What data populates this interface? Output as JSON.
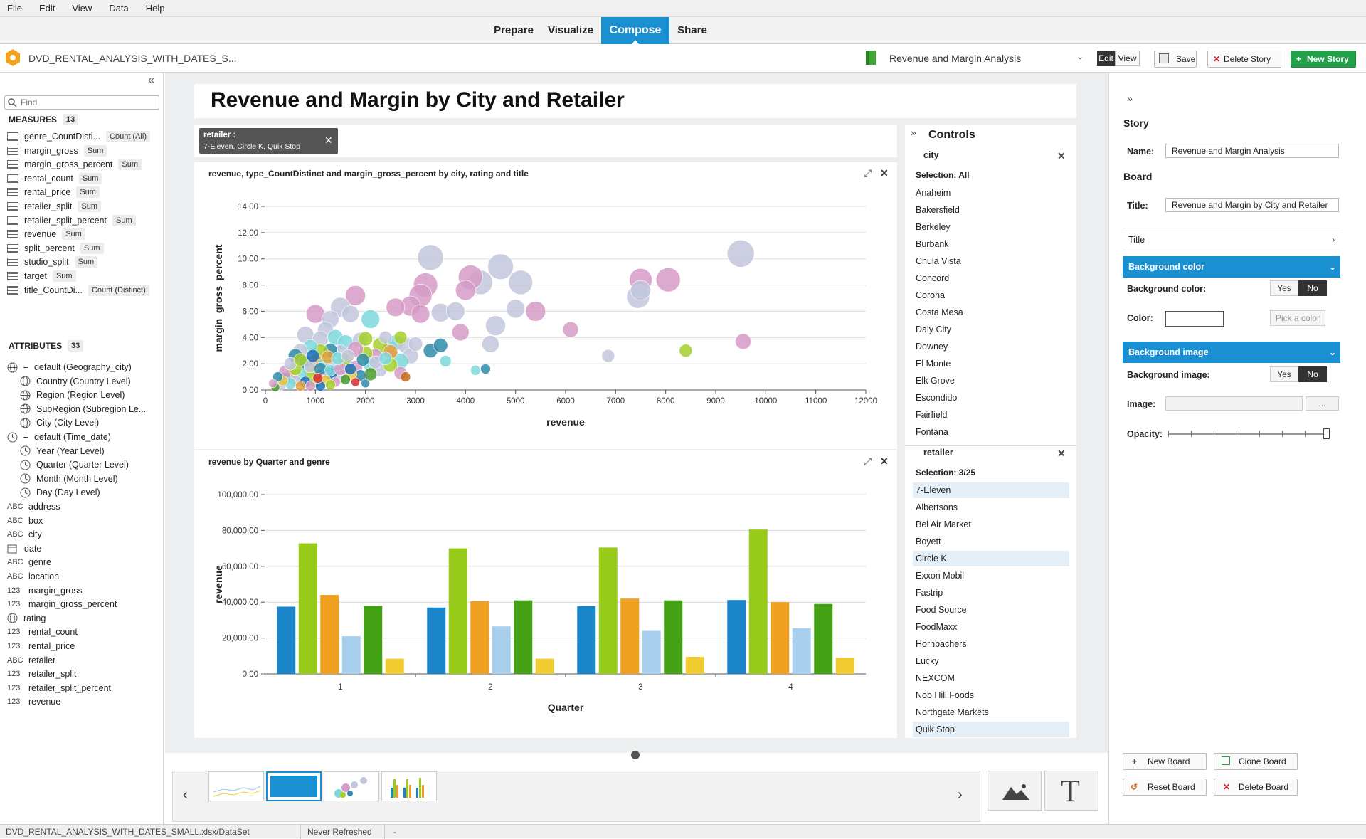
{
  "menu": [
    "File",
    "Edit",
    "View",
    "Data",
    "Help"
  ],
  "modes": [
    "Prepare",
    "Visualize",
    "Compose",
    "Share"
  ],
  "toolbar": {
    "dataset": "DVD_RENTAL_ANALYSIS_WITH_DATES_S...",
    "story_name": "Revenue and Margin Analysis",
    "edit": "Edit",
    "view": "View",
    "save": "Save",
    "delete_story": "Delete Story",
    "new_story": "New Story"
  },
  "left": {
    "find_placeholder": "Find",
    "measures_title": "MEASURES",
    "measures_count": "13",
    "attributes_title": "ATTRIBUTES",
    "attributes_count": "33",
    "measures": [
      {
        "name": "genre_CountDisti...",
        "agg": "Count (All)"
      },
      {
        "name": "margin_gross",
        "agg": "Sum"
      },
      {
        "name": "margin_gross_percent",
        "agg": "Sum"
      },
      {
        "name": "rental_count",
        "agg": "Sum"
      },
      {
        "name": "rental_price",
        "agg": "Sum"
      },
      {
        "name": "retailer_split",
        "agg": "Sum"
      },
      {
        "name": "retailer_split_percent",
        "agg": "Sum"
      },
      {
        "name": "revenue",
        "agg": "Sum"
      },
      {
        "name": "split_percent",
        "agg": "Sum"
      },
      {
        "name": "studio_split",
        "agg": "Sum"
      },
      {
        "name": "target",
        "agg": "Sum"
      },
      {
        "name": "title_CountDi...",
        "agg": "Count (Distinct)"
      }
    ],
    "attributes": [
      {
        "type": "geo",
        "name": "default (Geography_city)",
        "indent": 0
      },
      {
        "type": "geo",
        "name": "Country (Country Level)",
        "indent": 1
      },
      {
        "type": "geo",
        "name": "Region (Region Level)",
        "indent": 1
      },
      {
        "type": "geo",
        "name": "SubRegion (Subregion Le...",
        "indent": 1
      },
      {
        "type": "geo",
        "name": "City (City Level)",
        "indent": 1
      },
      {
        "type": "time",
        "name": "default (Time_date)",
        "indent": 0
      },
      {
        "type": "time",
        "name": "Year (Year Level)",
        "indent": 1
      },
      {
        "type": "time",
        "name": "Quarter (Quarter Level)",
        "indent": 1
      },
      {
        "type": "time",
        "name": "Month (Month Level)",
        "indent": 1
      },
      {
        "type": "time",
        "name": "Day (Day Level)",
        "indent": 1
      },
      {
        "type": "ABC",
        "name": "address",
        "indent": 0
      },
      {
        "type": "ABC",
        "name": "box",
        "indent": 0
      },
      {
        "type": "ABC",
        "name": "city",
        "indent": 0
      },
      {
        "type": "date",
        "name": "date",
        "indent": 0
      },
      {
        "type": "ABC",
        "name": "genre",
        "indent": 0
      },
      {
        "type": "ABC",
        "name": "location",
        "indent": 0
      },
      {
        "type": "123",
        "name": "margin_gross",
        "indent": 0
      },
      {
        "type": "123",
        "name": "margin_gross_percent",
        "indent": 0
      },
      {
        "type": "geo",
        "name": "rating",
        "indent": 0
      },
      {
        "type": "123",
        "name": "rental_count",
        "indent": 0
      },
      {
        "type": "123",
        "name": "rental_price",
        "indent": 0
      },
      {
        "type": "ABC",
        "name": "retailer",
        "indent": 0
      },
      {
        "type": "123",
        "name": "retailer_split",
        "indent": 0
      },
      {
        "type": "123",
        "name": "retailer_split_percent",
        "indent": 0
      },
      {
        "type": "123",
        "name": "revenue",
        "indent": 0
      }
    ]
  },
  "board": {
    "title": "Revenue and Margin by City and Retailer",
    "filter_label": "retailer :",
    "filter_value": "7-Eleven, Circle K, Quik Stop",
    "chart1_title": "revenue, type_CountDistinct and margin_gross_percent by city, rating and title",
    "chart2_title": "revenue by Quarter and genre"
  },
  "controls": {
    "title": "Controls",
    "city": {
      "label": "city",
      "selection": "Selection: All",
      "items": [
        "Anaheim",
        "Bakersfield",
        "Berkeley",
        "Burbank",
        "Chula Vista",
        "Concord",
        "Corona",
        "Costa Mesa",
        "Daly City",
        "Downey",
        "El Monte",
        "Elk Grove",
        "Escondido",
        "Fairfield",
        "Fontana"
      ]
    },
    "retailer": {
      "label": "retailer",
      "selection": "Selection: 3/25",
      "items": [
        "7-Eleven",
        "Albertsons",
        "Bel Air Market",
        "Boyett",
        "Circle K",
        "Exxon Mobil",
        "Fastrip",
        "Food Source",
        "FoodMaxx",
        "Hornbachers",
        "Lucky",
        "NEXCOM",
        "Nob Hill Foods",
        "Northgate Markets",
        "Quik Stop"
      ],
      "selected": [
        0,
        4,
        14
      ]
    }
  },
  "right": {
    "story_heading": "Story",
    "name_label": "Name:",
    "name_value": "Revenue and Margin Analysis",
    "board_heading": "Board",
    "title_label": "Title:",
    "title_value": "Revenue and Margin by City and Retailer",
    "title_section": "Title",
    "bg_color_header": "Background color",
    "bg_color_label": "Background color:",
    "yes": "Yes",
    "no": "No",
    "color_label": "Color:",
    "pick_color": "Pick a color",
    "bg_image_header": "Background image",
    "bg_image_label": "Background image:",
    "image_label": "Image:",
    "browse": "...",
    "opacity_label": "Opacity:",
    "opacity": 1.0,
    "new_board": "New Board",
    "clone_board": "Clone Board",
    "reset_board": "Reset Board",
    "delete_board": "Delete Board"
  },
  "status": {
    "path": "DVD_RENTAL_ANALYSIS_WITH_DATES_SMALL.xlsx/DataSet",
    "refresh": "Never Refreshed",
    "extra": "-"
  },
  "colors": {
    "accent": "#1a8fd1",
    "new_story": "#22a04a"
  },
  "chart_data": [
    {
      "type": "scatter",
      "title": "revenue, type_CountDistinct and margin_gross_percent by city, rating and title",
      "xlabel": "revenue",
      "ylabel": "margin_gross_percent",
      "xlim": [
        0,
        12000
      ],
      "ylim": [
        0,
        14
      ],
      "xticks": [
        "0",
        "1000",
        "2000",
        "3000",
        "4000",
        "5000",
        "6000",
        "7000",
        "8000",
        "9000",
        "10000",
        "11000",
        "12000"
      ],
      "yticks": [
        "0.00",
        "2.00",
        "4.00",
        "6.00",
        "8.00",
        "10.00",
        "12.00",
        "14.00"
      ],
      "points": [
        [
          9500,
          10.4,
          19,
          "#c2c7dc"
        ],
        [
          7500,
          8.4,
          16,
          "#d59bc6"
        ],
        [
          8050,
          8.4,
          17,
          "#d59bc6"
        ],
        [
          7450,
          7.1,
          16,
          "#c2c7dc"
        ],
        [
          7500,
          7.6,
          14,
          "#c2c7dc"
        ],
        [
          9550,
          3.7,
          11,
          "#d59bc6"
        ],
        [
          8400,
          3.0,
          9,
          "#a6cf2a"
        ],
        [
          6850,
          2.6,
          9,
          "#c2c7dc"
        ],
        [
          6100,
          4.6,
          11,
          "#d59bc6"
        ],
        [
          5400,
          6.0,
          14,
          "#d59bc6"
        ],
        [
          5100,
          8.2,
          17,
          "#c2c7dc"
        ],
        [
          5000,
          6.2,
          13,
          "#c2c7dc"
        ],
        [
          4700,
          9.4,
          18,
          "#c2c7dc"
        ],
        [
          4500,
          3.5,
          12,
          "#c2c7dc"
        ],
        [
          4300,
          8.2,
          17,
          "#c2c7dc"
        ],
        [
          4100,
          8.6,
          17,
          "#d59bc6"
        ],
        [
          4000,
          7.6,
          14,
          "#d59bc6"
        ],
        [
          3500,
          5.9,
          13,
          "#c2c7dc"
        ],
        [
          3800,
          6.0,
          13,
          "#c2c7dc"
        ],
        [
          4600,
          4.9,
          14,
          "#c2c7dc"
        ],
        [
          3900,
          4.4,
          12,
          "#d59bc6"
        ],
        [
          3300,
          10.1,
          18,
          "#c2c7dc"
        ],
        [
          3200,
          8.0,
          17,
          "#d59bc6"
        ],
        [
          3100,
          7.2,
          16,
          "#d59bc6"
        ],
        [
          2900,
          6.4,
          14,
          "#d59bc6"
        ],
        [
          3100,
          5.8,
          13,
          "#d59bc6"
        ],
        [
          2600,
          6.3,
          13,
          "#d59bc6"
        ],
        [
          2500,
          3.1,
          11,
          "#d59bc6"
        ],
        [
          3300,
          3.0,
          10,
          "#2f8ba8"
        ],
        [
          3500,
          3.4,
          10,
          "#2f8ba8"
        ],
        [
          3600,
          2.2,
          8,
          "#7dd8dc"
        ],
        [
          4400,
          1.6,
          7,
          "#2f8ba8"
        ],
        [
          4200,
          1.5,
          7,
          "#7dd8dc"
        ],
        [
          2100,
          5.4,
          13,
          "#7dd8dc"
        ],
        [
          1800,
          7.2,
          14,
          "#d59bc6"
        ],
        [
          1500,
          6.3,
          14,
          "#c2c7dc"
        ],
        [
          1000,
          5.8,
          13,
          "#d59bc6"
        ],
        [
          1300,
          5.4,
          12,
          "#c2c7dc"
        ],
        [
          1700,
          5.8,
          12,
          "#c2c7dc"
        ],
        [
          1200,
          4.6,
          11,
          "#c2c7dc"
        ],
        [
          800,
          4.2,
          12,
          "#c2c7dc"
        ],
        [
          1100,
          3.9,
          11,
          "#c2c7dc"
        ],
        [
          1400,
          4.0,
          11,
          "#7dd8dc"
        ],
        [
          1600,
          3.6,
          11,
          "#7dd8dc"
        ],
        [
          1900,
          3.8,
          11,
          "#c2c7dc"
        ],
        [
          2300,
          3.4,
          11,
          "#a6cf2a"
        ],
        [
          2600,
          3.6,
          11,
          "#7dd8dc"
        ],
        [
          2800,
          3.4,
          11,
          "#c2c7dc"
        ],
        [
          2900,
          2.6,
          11,
          "#c2c7dc"
        ],
        [
          2700,
          2.2,
          11,
          "#7dd8dc"
        ],
        [
          2500,
          2.9,
          10,
          "#e3a23a"
        ],
        [
          2200,
          2.6,
          10,
          "#d59bc6"
        ],
        [
          2000,
          2.8,
          10,
          "#a6cf2a"
        ],
        [
          1800,
          3.1,
          11,
          "#d59bc6"
        ],
        [
          1500,
          2.9,
          10,
          "#c2c7dc"
        ],
        [
          1300,
          3.0,
          10,
          "#2f8ba8"
        ],
        [
          1100,
          2.9,
          11,
          "#a6cf2a"
        ],
        [
          900,
          3.3,
          10,
          "#7dd8dc"
        ],
        [
          700,
          3.0,
          10,
          "#c2c7dc"
        ],
        [
          600,
          2.6,
          10,
          "#2f8ba8"
        ],
        [
          800,
          2.1,
          10,
          "#2f8ba8"
        ],
        [
          1000,
          2.2,
          10,
          "#e3a23a"
        ],
        [
          1200,
          2.0,
          10,
          "#7dd8dc"
        ],
        [
          1400,
          1.8,
          10,
          "#c2c7dc"
        ],
        [
          1600,
          2.2,
          10,
          "#a6cf2a"
        ],
        [
          1800,
          1.7,
          10,
          "#d59bc6"
        ],
        [
          2100,
          1.9,
          10,
          "#7dd8dc"
        ],
        [
          2300,
          1.5,
          9,
          "#c2c7dc"
        ],
        [
          2500,
          1.9,
          10,
          "#a6cf2a"
        ],
        [
          2700,
          1.3,
          9,
          "#d59bc6"
        ],
        [
          2800,
          1.0,
          7,
          "#c46b1a"
        ],
        [
          2100,
          1.2,
          9,
          "#4a9a2a"
        ],
        [
          1900,
          1.1,
          8,
          "#2f8ba8"
        ],
        [
          1700,
          1.2,
          9,
          "#e8c53a"
        ],
        [
          1500,
          1.0,
          9,
          "#c2c7dc"
        ],
        [
          1300,
          1.2,
          9,
          "#1a6fb8"
        ],
        [
          1100,
          1.1,
          9,
          "#d59bc6"
        ],
        [
          900,
          1.3,
          9,
          "#a6cf2a"
        ],
        [
          700,
          1.2,
          9,
          "#7dd8dc"
        ],
        [
          500,
          1.1,
          9,
          "#e3a23a"
        ],
        [
          400,
          0.9,
          8,
          "#2f8ba8"
        ],
        [
          600,
          0.7,
          8,
          "#c2c7dc"
        ],
        [
          800,
          0.6,
          8,
          "#1a6fb8"
        ],
        [
          1000,
          0.6,
          8,
          "#a6cf2a"
        ],
        [
          1200,
          0.7,
          8,
          "#e8c53a"
        ],
        [
          1400,
          0.6,
          7,
          "#d59bc6"
        ],
        [
          1600,
          0.8,
          7,
          "#4a9a2a"
        ],
        [
          1800,
          0.6,
          6,
          "#d62d2d"
        ],
        [
          2000,
          0.5,
          6,
          "#2f8ba8"
        ],
        [
          300,
          0.4,
          8,
          "#c2c7dc"
        ],
        [
          500,
          0.5,
          8,
          "#7dd8dc"
        ],
        [
          700,
          0.3,
          7,
          "#e3a23a"
        ],
        [
          900,
          0.3,
          7,
          "#d59bc6"
        ],
        [
          1100,
          0.3,
          7,
          "#1a6fb8"
        ],
        [
          1300,
          0.4,
          7,
          "#a6cf2a"
        ],
        [
          200,
          0.2,
          6,
          "#4a9a2a"
        ],
        [
          400,
          1.4,
          9,
          "#d59bc6"
        ],
        [
          600,
          1.6,
          9,
          "#a6cf2a"
        ],
        [
          900,
          1.8,
          9,
          "#c2c7dc"
        ],
        [
          1100,
          1.6,
          9,
          "#2f8ba8"
        ],
        [
          1300,
          1.5,
          8,
          "#7dd8dc"
        ],
        [
          1500,
          1.6,
          9,
          "#d59bc6"
        ],
        [
          1700,
          1.6,
          8,
          "#1a6fb8"
        ],
        [
          500,
          2.0,
          9,
          "#c2c7dc"
        ],
        [
          700,
          2.3,
          9,
          "#a6cf2a"
        ],
        [
          950,
          2.6,
          9,
          "#1a6fb8"
        ],
        [
          1250,
          2.5,
          9,
          "#e3a23a"
        ],
        [
          1450,
          2.4,
          9,
          "#7dd8dc"
        ],
        [
          1650,
          2.6,
          9,
          "#c2c7dc"
        ],
        [
          350,
          0.7,
          7,
          "#e8c53a"
        ],
        [
          250,
          1.0,
          7,
          "#2f8ba8"
        ],
        [
          150,
          0.5,
          6,
          "#d59bc6"
        ],
        [
          1050,
          0.9,
          7,
          "#d62d2d"
        ],
        [
          1950,
          2.3,
          9,
          "#2f8ba8"
        ],
        [
          2200,
          2.1,
          9,
          "#c2c7dc"
        ],
        [
          2400,
          2.4,
          9,
          "#7dd8dc"
        ],
        [
          2000,
          3.9,
          10,
          "#a6cf2a"
        ],
        [
          2400,
          4.0,
          9,
          "#c2c7dc"
        ],
        [
          3000,
          3.5,
          10,
          "#c2c7dc"
        ],
        [
          2700,
          4.0,
          9,
          "#a6cf2a"
        ]
      ]
    },
    {
      "type": "bar",
      "title": "revenue by Quarter and genre",
      "xlabel": "Quarter",
      "ylabel": "revenue",
      "ylim": [
        0,
        100000
      ],
      "categories": [
        "1",
        "2",
        "3",
        "4"
      ],
      "yticks": [
        "0.00",
        "20,000.00",
        "40,000.00",
        "60,000.00",
        "80,000.00",
        "100,000.00"
      ],
      "series": [
        {
          "color": "#1a85c8",
          "values": [
            37500,
            37000,
            37800,
            41200
          ]
        },
        {
          "color": "#99cc1a",
          "values": [
            72800,
            70000,
            70500,
            80500
          ]
        },
        {
          "color": "#f0a020",
          "values": [
            44000,
            40500,
            42000,
            40000
          ]
        },
        {
          "color": "#a8d0ee",
          "values": [
            21000,
            26500,
            24000,
            25500
          ]
        },
        {
          "color": "#44a015",
          "values": [
            38000,
            41000,
            41000,
            39000
          ]
        },
        {
          "color": "#f0cc30",
          "values": [
            8500,
            8500,
            9500,
            9000
          ]
        }
      ]
    }
  ]
}
